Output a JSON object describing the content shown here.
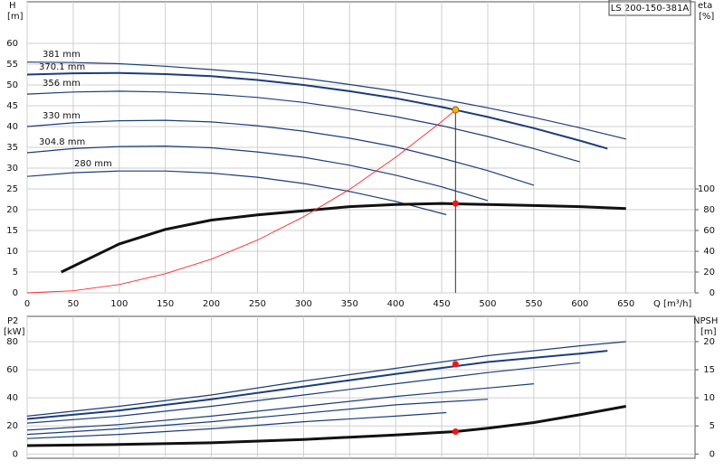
{
  "chart_data": [
    {
      "type": "line",
      "title": "LS 200-150-381A",
      "y_label": "H",
      "y_unit": "[m]",
      "y2_label": "eta",
      "y2_unit": "[%]",
      "x_label": "Q [m³/h]",
      "xlim": [
        0,
        725
      ],
      "xticks": [
        0,
        50,
        100,
        150,
        200,
        250,
        300,
        350,
        400,
        450,
        500,
        550,
        600,
        650
      ],
      "ylim": [
        0,
        70
      ],
      "yticks": [
        0,
        5,
        10,
        15,
        20,
        25,
        30,
        35,
        40,
        45,
        50,
        55,
        60
      ],
      "y2lim": [
        0,
        280
      ],
      "y2ticks": [
        0,
        20,
        40,
        60,
        80,
        100
      ],
      "grid": true,
      "series": [
        {
          "name": "381 mm",
          "color": "#1c3d7a",
          "x": [
            0,
            50,
            100,
            150,
            200,
            250,
            300,
            350,
            400,
            450,
            500,
            550,
            600,
            650
          ],
          "values": [
            55.5,
            55.4,
            55.1,
            54.5,
            53.7,
            52.8,
            51.6,
            50.1,
            48.5,
            46.6,
            44.5,
            42.2,
            39.7,
            37.0
          ]
        },
        {
          "name": "370.1 mm",
          "color": "#1c3d7a",
          "x": [
            0,
            50,
            100,
            150,
            200,
            250,
            300,
            350,
            400,
            450,
            465,
            500,
            550,
            600,
            630
          ],
          "values": [
            52.5,
            52.8,
            52.9,
            52.6,
            52.1,
            51.2,
            50.0,
            48.5,
            46.8,
            44.7,
            44.0,
            42.3,
            39.6,
            36.6,
            34.7
          ]
        },
        {
          "name": "356 mm",
          "color": "#1c3d7a",
          "x": [
            0,
            50,
            100,
            150,
            200,
            250,
            300,
            350,
            400,
            450,
            500,
            550,
            600
          ],
          "values": [
            47.8,
            48.3,
            48.5,
            48.3,
            47.8,
            47.0,
            45.8,
            44.2,
            42.4,
            40.2,
            37.6,
            34.7,
            31.5
          ]
        },
        {
          "name": "330 mm",
          "color": "#1c3d7a",
          "x": [
            0,
            50,
            100,
            150,
            200,
            250,
            300,
            350,
            400,
            450,
            500,
            550
          ],
          "values": [
            40.0,
            40.9,
            41.4,
            41.5,
            41.1,
            40.2,
            38.9,
            37.2,
            35.1,
            32.4,
            29.4,
            25.9
          ]
        },
        {
          "name": "304.8 mm",
          "color": "#1c3d7a",
          "x": [
            0,
            50,
            100,
            150,
            200,
            250,
            300,
            350,
            400,
            450,
            500
          ],
          "values": [
            33.7,
            34.7,
            35.2,
            35.3,
            34.9,
            33.9,
            32.6,
            30.7,
            28.3,
            25.5,
            22.2
          ]
        },
        {
          "name": "280 mm",
          "color": "#1c3d7a",
          "x": [
            0,
            50,
            100,
            150,
            200,
            250,
            300,
            350,
            400,
            455
          ],
          "values": [
            28.0,
            28.9,
            29.3,
            29.3,
            28.8,
            27.8,
            26.3,
            24.4,
            22.0,
            18.8
          ]
        }
      ],
      "efficiency": {
        "color": "#111111",
        "axis": "y2",
        "x": [
          37,
          100,
          150,
          200,
          250,
          300,
          350,
          400,
          450,
          500,
          550,
          600,
          650
        ],
        "values": [
          20,
          47,
          61,
          70,
          75,
          79,
          83,
          85,
          86,
          85,
          84,
          83,
          81
        ]
      },
      "system_curve": {
        "color": "#ff2a2a",
        "x": [
          0,
          50,
          100,
          150,
          200,
          250,
          300,
          350,
          400,
          450,
          465
        ],
        "values": [
          0,
          0.5,
          2,
          4.6,
          8.1,
          12.7,
          18.3,
          24.9,
          32.6,
          41.2,
          44
        ]
      },
      "operating_point": {
        "x": 465,
        "y": 44,
        "eta": 86
      }
    },
    {
      "type": "line",
      "y_label": "P2",
      "y_unit": "[kW]",
      "y2_label": "NPSH",
      "y2_unit": "[m]",
      "ylim": [
        -3,
        98
      ],
      "yticks": [
        0,
        20,
        40,
        60,
        80
      ],
      "y2lim": [
        -0.75,
        24.5
      ],
      "y2ticks": [
        0,
        5,
        10,
        15,
        20
      ],
      "grid": true,
      "series": [
        {
          "color": "#1c3d7a",
          "x": [
            0,
            100,
            200,
            300,
            400,
            500,
            600,
            650
          ],
          "values": [
            27,
            34,
            42,
            52,
            61,
            70,
            77,
            80
          ]
        },
        {
          "color": "#1c3d7a",
          "x": [
            0,
            100,
            200,
            300,
            400,
            500,
            600,
            630
          ],
          "values": [
            25,
            31,
            39,
            48,
            57,
            65.5,
            71.5,
            73.5
          ]
        },
        {
          "color": "#1c3d7a",
          "x": [
            0,
            100,
            200,
            300,
            400,
            500,
            600
          ],
          "values": [
            22,
            27,
            34,
            42,
            50,
            58,
            65
          ]
        },
        {
          "color": "#1c3d7a",
          "x": [
            0,
            100,
            200,
            300,
            400,
            500,
            550
          ],
          "values": [
            17,
            21,
            27,
            34,
            41,
            47,
            50
          ]
        },
        {
          "color": "#1c3d7a",
          "x": [
            0,
            100,
            200,
            300,
            400,
            500
          ],
          "values": [
            14,
            18,
            23,
            29,
            35,
            39
          ]
        },
        {
          "color": "#1c3d7a",
          "x": [
            0,
            100,
            200,
            300,
            400,
            455
          ],
          "values": [
            11,
            14,
            18,
            23,
            27,
            29.5
          ]
        }
      ],
      "npsh": {
        "color": "#111111",
        "axis": "y2",
        "x": [
          0,
          100,
          200,
          300,
          400,
          465,
          500,
          550,
          600,
          650
        ],
        "values": [
          1.5,
          1.7,
          2,
          2.6,
          3.4,
          4,
          4.6,
          5.6,
          7,
          8.5
        ]
      },
      "operating_point": {
        "x": 465,
        "y": 64,
        "npsh": 4
      }
    }
  ]
}
